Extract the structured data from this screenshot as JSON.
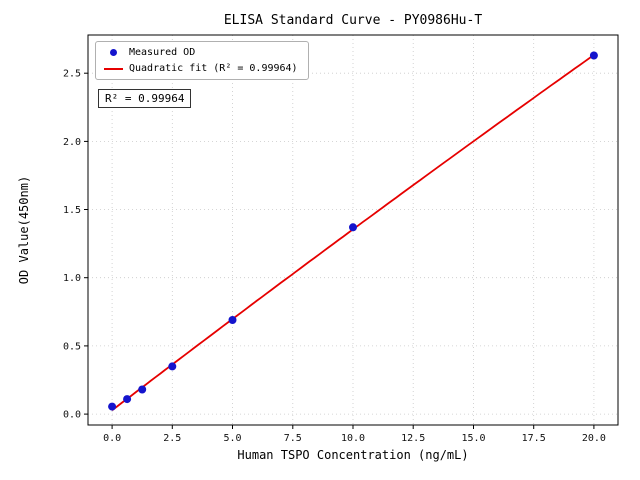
{
  "chart_data": {
    "type": "scatter",
    "title": "ELISA Standard Curve - PY0986Hu-T",
    "xlabel": "Human TSPO Concentration (ng/mL)",
    "ylabel": "OD Value(450nm)",
    "xlim": [
      -1,
      21
    ],
    "ylim": [
      -0.08,
      2.78
    ],
    "xticks": [
      0.0,
      2.5,
      5.0,
      7.5,
      10.0,
      12.5,
      15.0,
      17.5,
      20.0
    ],
    "yticks": [
      0.0,
      0.5,
      1.0,
      1.5,
      2.0,
      2.5
    ],
    "grid": true,
    "grid_color": "#c9c9c9",
    "legend_position": "upper-left",
    "annotation": "R² = 0.99964",
    "r_squared": 0.99964,
    "series": [
      {
        "name": "Measured OD",
        "type": "scatter",
        "color": "#1414cd",
        "x": [
          0,
          0.625,
          1.25,
          2.5,
          5,
          10,
          20
        ],
        "y": [
          0.055,
          0.11,
          0.18,
          0.35,
          0.69,
          1.37,
          2.63
        ]
      },
      {
        "name": "Quadratic fit (R² = 0.99964)",
        "type": "fit-line",
        "color": "#e60000",
        "coefficients": [
          0.0278,
          0.1351,
          -0.00024
        ],
        "x_range": [
          0,
          20
        ]
      }
    ]
  }
}
